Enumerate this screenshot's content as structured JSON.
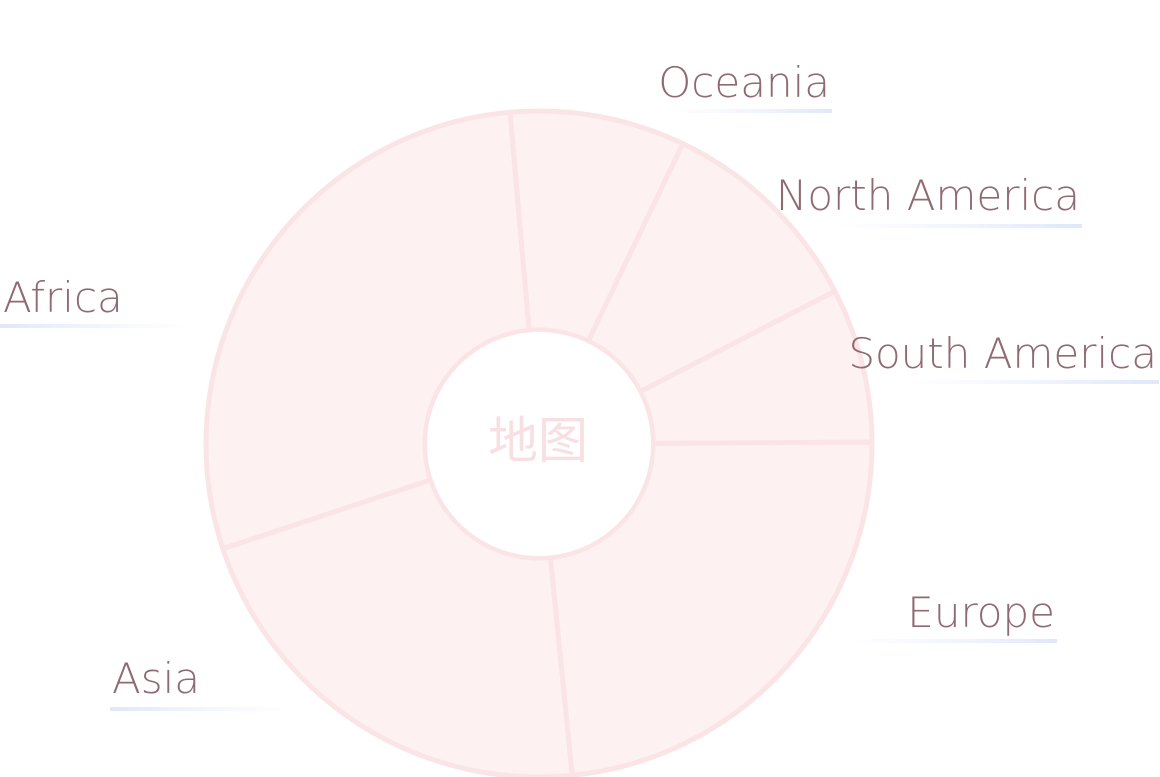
{
  "chart_data": {
    "type": "pie",
    "variant": "donut",
    "title": "",
    "center_label": "地图",
    "categories": [
      "Oceania",
      "North America",
      "South America",
      "Europe",
      "Asia",
      "Africa"
    ],
    "values": [
      8.5,
      10.3,
      7.5,
      23.5,
      21.5,
      28.7
    ],
    "legend": "none",
    "colors": {
      "slice_fill": "#fdf1f1",
      "slice_border": "#fbe4e6",
      "label_text": "#8f6a72",
      "center_text": "#f7dfe2",
      "label_underline": "#e6edfb"
    }
  }
}
